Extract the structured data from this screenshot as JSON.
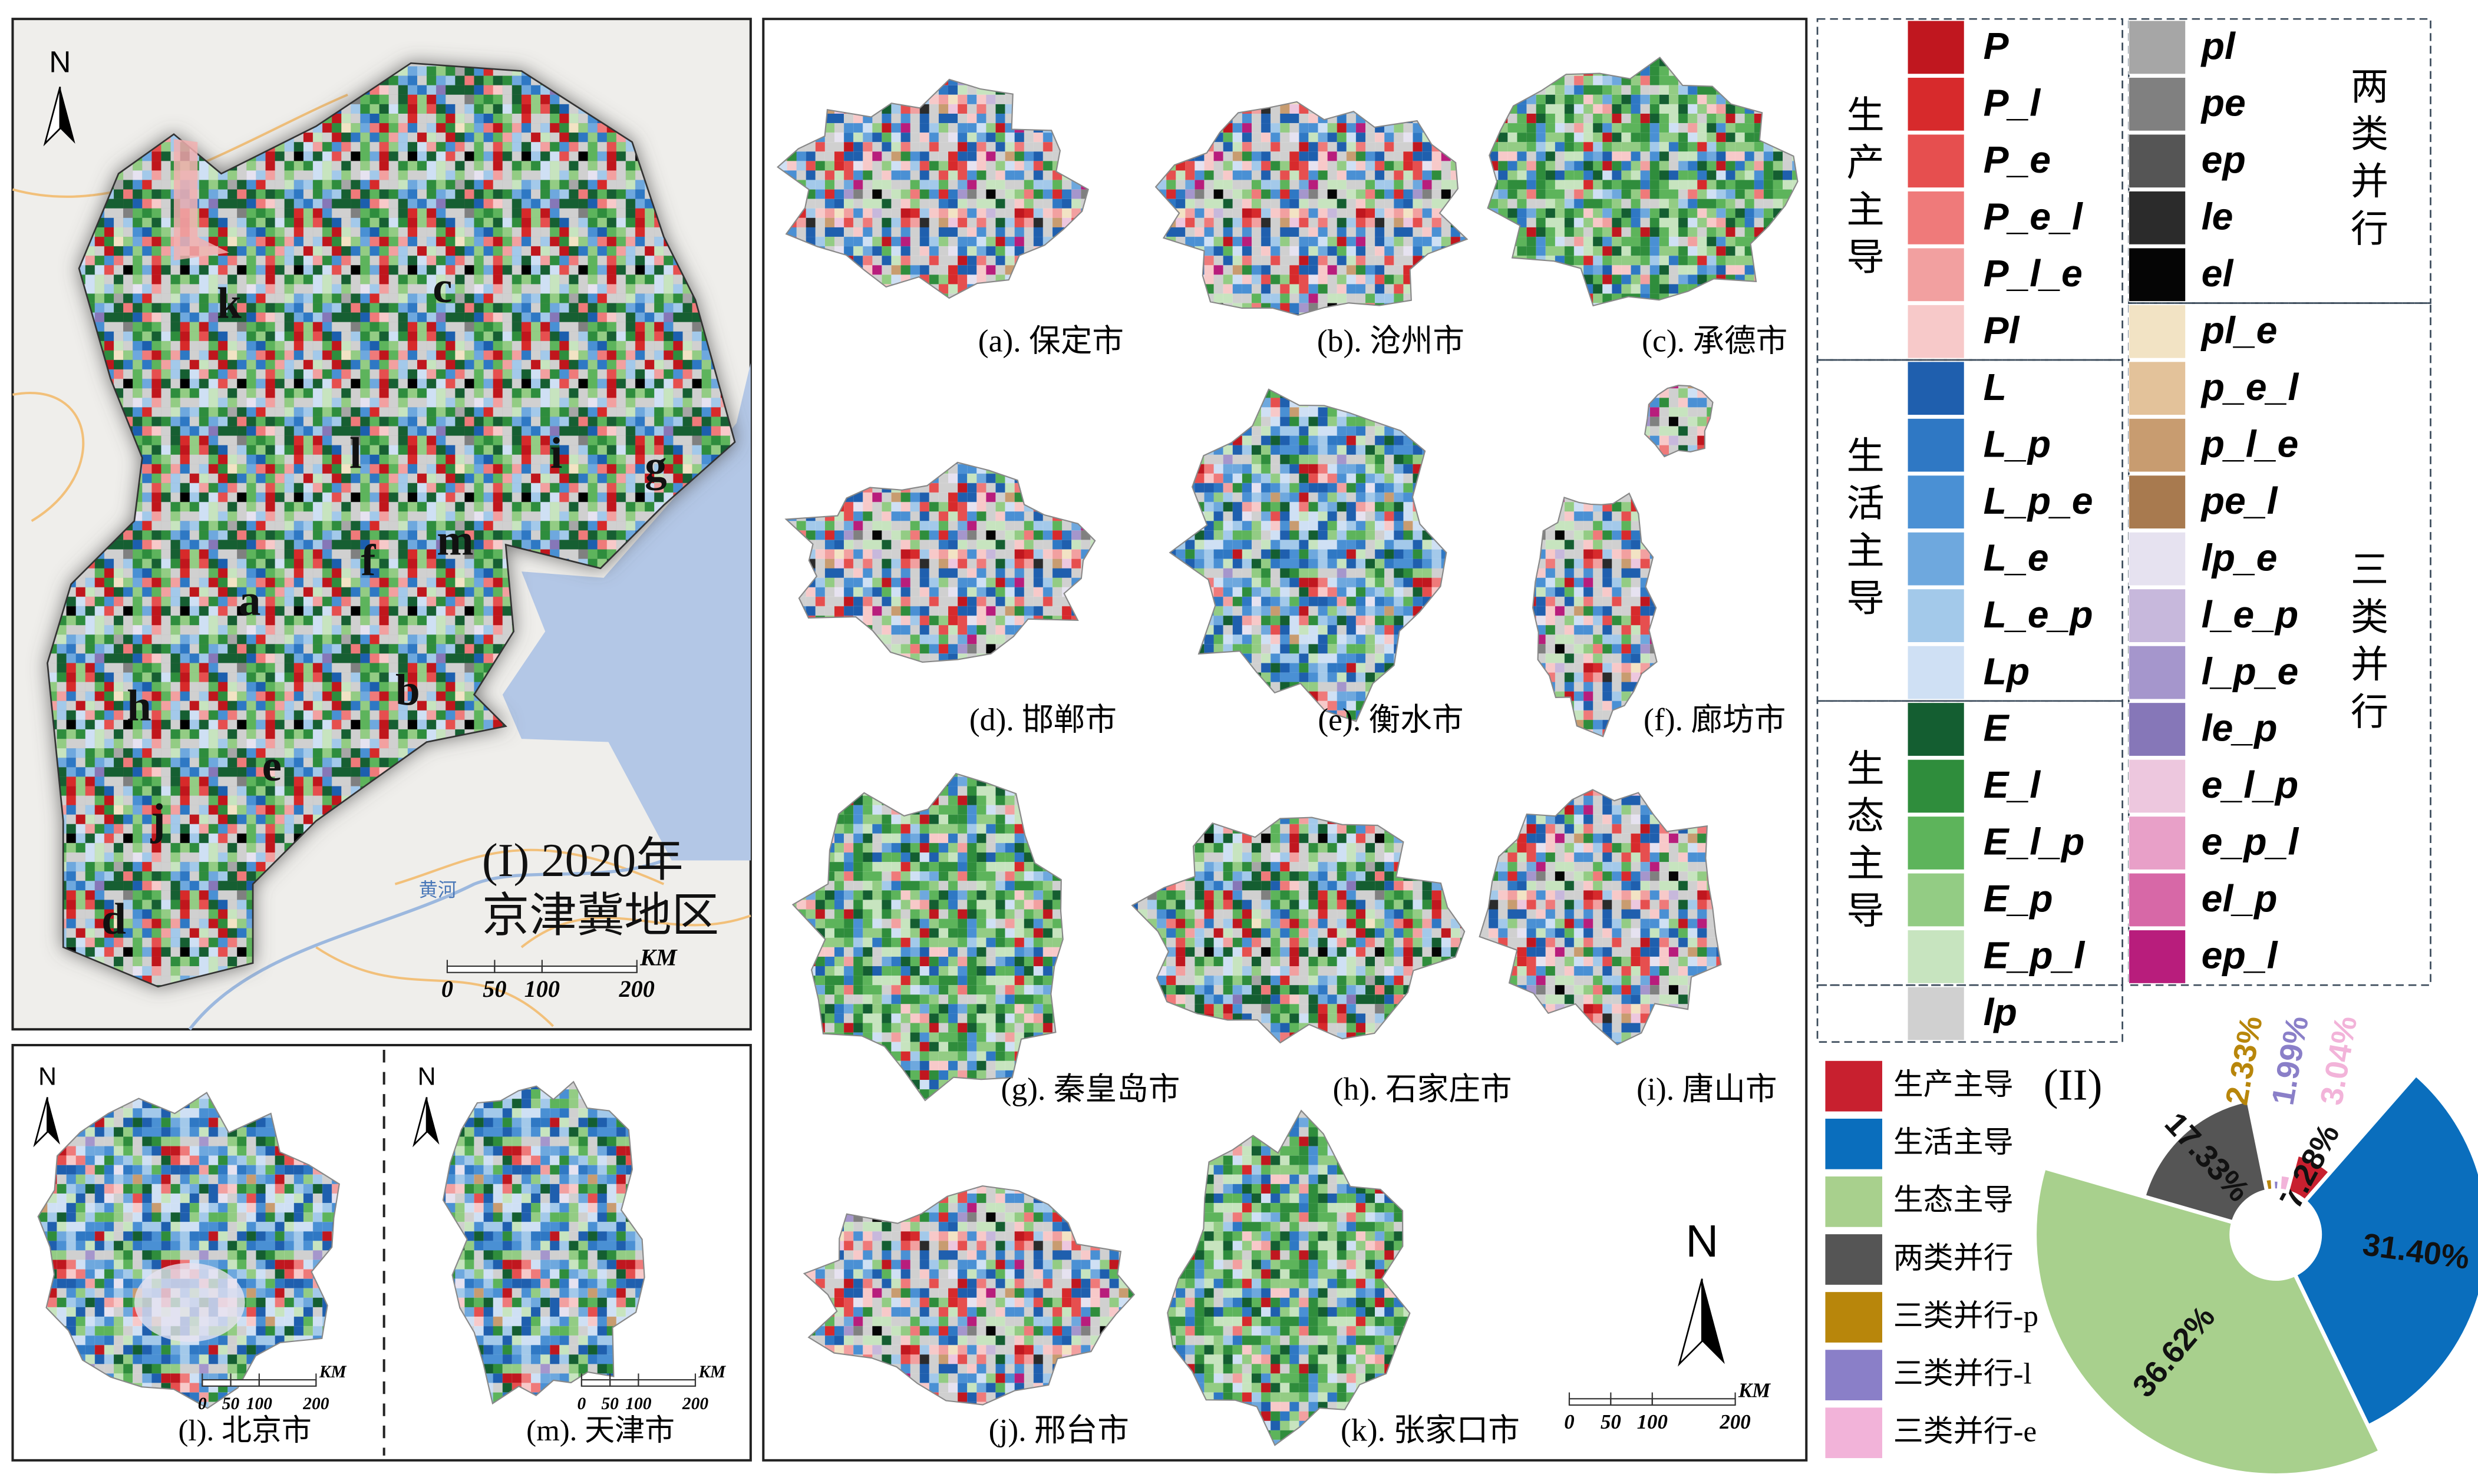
{
  "main_map": {
    "title_line1": "(I) 2020年",
    "title_line2": "京津冀地区",
    "north": "N",
    "river": "黄河",
    "labels": [
      "k",
      "c",
      "l",
      "i",
      "g",
      "m",
      "f",
      "a",
      "h",
      "b",
      "e",
      "j",
      "d"
    ],
    "scale": {
      "ticks": [
        0,
        50,
        100,
        200
      ],
      "unit": "KM"
    }
  },
  "inset_maps": {
    "captions": [
      "(l). 北京市",
      "(m). 天津市"
    ],
    "north": "N",
    "scale": {
      "ticks": [
        0,
        50,
        100,
        200
      ],
      "unit": "KM"
    }
  },
  "city_maps": {
    "captions": [
      "(a). 保定市",
      "(b). 沧州市",
      "(c). 承德市",
      "(d). 邯郸市",
      "(e). 衡水市",
      "(f). 廊坊市",
      "(g). 秦皇岛市",
      "(h). 石家庄市",
      "(i). 唐山市",
      "(j). 邢台市",
      "(k). 张家口市"
    ],
    "north": "N",
    "scale": {
      "ticks": [
        0,
        50,
        100,
        200
      ],
      "unit": "KM"
    }
  },
  "legend": {
    "left": [
      {
        "group": "生产主导",
        "items": [
          {
            "code": "P",
            "color": "#c0171f"
          },
          {
            "code": "P_l",
            "color": "#d72a2c"
          },
          {
            "code": "P_e",
            "color": "#e64f4f"
          },
          {
            "code": "P_e_l",
            "color": "#ef7a7a"
          },
          {
            "code": "P_l_e",
            "color": "#f2a0a0"
          },
          {
            "code": "Pl",
            "color": "#f7c9c9"
          }
        ]
      },
      {
        "group": "生活主导",
        "items": [
          {
            "code": "L",
            "color": "#1f5fae"
          },
          {
            "code": "L_p",
            "color": "#2f78c4"
          },
          {
            "code": "L_p_e",
            "color": "#4a90d4"
          },
          {
            "code": "L_e",
            "color": "#6ea8de"
          },
          {
            "code": "L_e_p",
            "color": "#a3c9ea"
          },
          {
            "code": "Lp",
            "color": "#cfe0f4"
          }
        ]
      },
      {
        "group": "生态主导",
        "items": [
          {
            "code": "E",
            "color": "#145e31"
          },
          {
            "code": "E_l",
            "color": "#2f8d3c"
          },
          {
            "code": "E_l_p",
            "color": "#5db45b"
          },
          {
            "code": "E_p",
            "color": "#93cc84"
          },
          {
            "code": "E_p_l",
            "color": "#c7e4bf"
          }
        ]
      },
      {
        "items": [
          {
            "code": "lp",
            "color": "#d0d0d0"
          }
        ]
      }
    ],
    "right": [
      {
        "group": "两类并行",
        "items": [
          {
            "code": "pl",
            "color": "#a6a6a6"
          },
          {
            "code": "pe",
            "color": "#808080"
          },
          {
            "code": "ep",
            "color": "#555555"
          },
          {
            "code": "le",
            "color": "#2b2b2b"
          },
          {
            "code": "el",
            "color": "#050505"
          }
        ]
      },
      {
        "group": "三类并行",
        "items": [
          {
            "code": "pl_e",
            "color": "#f2e3c4"
          },
          {
            "code": "p_e_l",
            "color": "#e3c29a"
          },
          {
            "code": "p_l_e",
            "color": "#c89c70"
          },
          {
            "code": "pe_l",
            "color": "#a87a4f"
          },
          {
            "code": "lp_e",
            "color": "#e6e2f0"
          },
          {
            "code": "l_e_p",
            "color": "#c7b8dc"
          },
          {
            "code": "l_p_e",
            "color": "#a596cc"
          },
          {
            "code": "le_p",
            "color": "#8677b8"
          },
          {
            "code": "e_l_p",
            "color": "#edc7de"
          },
          {
            "code": "e_p_l",
            "color": "#e8a0c8"
          },
          {
            "code": "el_p",
            "color": "#d768a7"
          },
          {
            "code": "ep_l",
            "color": "#b81d7c"
          }
        ]
      }
    ]
  },
  "chart_data": {
    "type": "pie",
    "title": "(II)",
    "categories": [
      "生产主导",
      "生活主导",
      "生态主导",
      "两类并行",
      "三类并行-p",
      "三类并行-l",
      "三类并行-e"
    ],
    "values": [
      7.28,
      31.4,
      36.62,
      17.33,
      2.33,
      1.99,
      3.04
    ],
    "value_labels": [
      "7.28%",
      "31.40%",
      "36.62%",
      "17.33%",
      "2.33%",
      "1.99%",
      "3.04%"
    ],
    "colors": [
      "#c8202f",
      "#0a6ebd",
      "#a8d08d",
      "#555555",
      "#b8860b",
      "#8a7fc8",
      "#f2b3d9"
    ]
  }
}
